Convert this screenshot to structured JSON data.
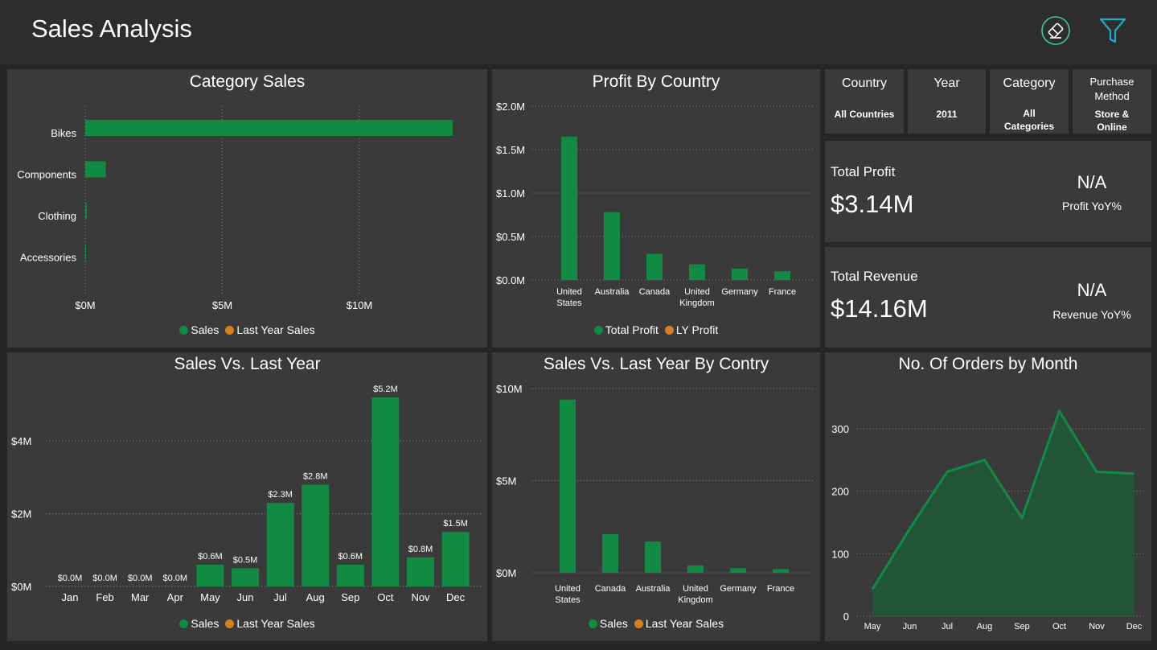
{
  "header": {
    "title": "Sales Analysis",
    "eraser_icon": "eraser-icon",
    "filter_icon": "filter-icon"
  },
  "colors": {
    "background": "#262626",
    "panel": "#3a3a3a",
    "sales_green": "#118a44",
    "last_year_orange": "#d7801e",
    "icon_teal": "#1aaec8"
  },
  "slicers": [
    {
      "label": "Country",
      "value": "All Countries"
    },
    {
      "label": "Year",
      "value": "2011"
    },
    {
      "label": "Category",
      "value": "All Categories"
    },
    {
      "label": "Purchase Method",
      "value": "Store & Online"
    }
  ],
  "kpis": {
    "profit": {
      "label": "Total Profit",
      "value": "$3.14M",
      "yoy_value": "N/A",
      "yoy_label": "Profit YoY%"
    },
    "revenue": {
      "label": "Total Revenue",
      "value": "$14.16M",
      "yoy_value": "N/A",
      "yoy_label": "Revenue YoY%"
    }
  },
  "chart_data": [
    {
      "id": "category",
      "type": "bar",
      "orientation": "horizontal",
      "title": "Category Sales",
      "categories": [
        "Bikes",
        "Components",
        "Clothing",
        "Accessories"
      ],
      "series": [
        {
          "name": "Sales",
          "values": [
            13.4,
            0.75,
            0.05,
            0.03
          ]
        },
        {
          "name": "Last Year  Sales",
          "values": [
            0,
            0,
            0,
            0
          ]
        }
      ],
      "x_ticks": [
        0,
        5,
        10
      ],
      "x_tick_labels": [
        "$0M",
        "$5M",
        "$10M"
      ],
      "xlim": [
        0,
        14.4
      ],
      "grid": true,
      "legend": "bottom"
    },
    {
      "id": "profit_country",
      "type": "bar",
      "title": "Profit By Country",
      "categories": [
        "United States",
        "Australia",
        "Canada",
        "United Kingdom",
        "Germany",
        "France"
      ],
      "series": [
        {
          "name": "Total Profit",
          "values": [
            1.65,
            0.78,
            0.3,
            0.18,
            0.13,
            0.1
          ]
        },
        {
          "name": "LY Profit",
          "values": [
            0,
            0,
            0,
            0,
            0,
            0
          ]
        }
      ],
      "y_ticks": [
        0,
        0.5,
        1.0,
        1.5,
        2.0
      ],
      "y_tick_labels": [
        "$0.0M",
        "$0.5M",
        "$1.0M",
        "$1.5M",
        "$2.0M"
      ],
      "ylim": [
        0,
        2.0
      ],
      "grid": true,
      "legend": "bottom"
    },
    {
      "id": "sales_month",
      "type": "bar",
      "title": "Sales Vs. Last Year",
      "categories": [
        "Jan",
        "Feb",
        "Mar",
        "Apr",
        "May",
        "Jun",
        "Jul",
        "Aug",
        "Sep",
        "Oct",
        "Nov",
        "Dec"
      ],
      "series": [
        {
          "name": "Sales",
          "values": [
            0,
            0,
            0,
            0,
            0.6,
            0.5,
            2.3,
            2.8,
            0.6,
            5.2,
            0.8,
            1.5
          ]
        },
        {
          "name": "Last Year Sales",
          "values": [
            0,
            0,
            0,
            0,
            0,
            0,
            0,
            0,
            0,
            0,
            0,
            0
          ]
        }
      ],
      "data_labels": [
        "$0.0M",
        "$0.0M",
        "$0.0M",
        "$0.0M",
        "$0.6M",
        "$0.5M",
        "$2.3M",
        "$2.8M",
        "$0.6M",
        "$5.2M",
        "$0.8M",
        "$1.5M"
      ],
      "y_ticks": [
        0,
        2,
        4
      ],
      "y_tick_labels": [
        "$0M",
        "$2M",
        "$4M"
      ],
      "ylim": [
        0,
        5.2
      ],
      "grid": true,
      "legend": "bottom"
    },
    {
      "id": "sales_country",
      "type": "bar",
      "title": "Sales Vs. Last Year By Contry",
      "categories": [
        "United States",
        "Canada",
        "Australia",
        "United Kingdom",
        "Germany",
        "France"
      ],
      "series": [
        {
          "name": "Sales",
          "values": [
            9.4,
            2.1,
            1.7,
            0.4,
            0.25,
            0.2
          ]
        },
        {
          "name": "Last Year Sales",
          "values": [
            0,
            0,
            0,
            0,
            0,
            0
          ]
        }
      ],
      "y_ticks": [
        0,
        5,
        10
      ],
      "y_tick_labels": [
        "$0M",
        "$5M",
        "$10M"
      ],
      "ylim": [
        0,
        10
      ],
      "grid": true,
      "legend": "bottom"
    },
    {
      "id": "orders_month",
      "type": "area",
      "title": "No. Of Orders by Month",
      "x": [
        "May",
        "Jun",
        "Jul",
        "Aug",
        "Sep",
        "Oct",
        "Nov",
        "Dec"
      ],
      "y": [
        43,
        140,
        231,
        250,
        157,
        328,
        231,
        228
      ],
      "y_ticks": [
        0,
        100,
        200,
        300
      ],
      "y_tick_labels": [
        "0",
        "100",
        "200",
        "300"
      ],
      "ylim": [
        0,
        350
      ],
      "grid": true
    }
  ]
}
